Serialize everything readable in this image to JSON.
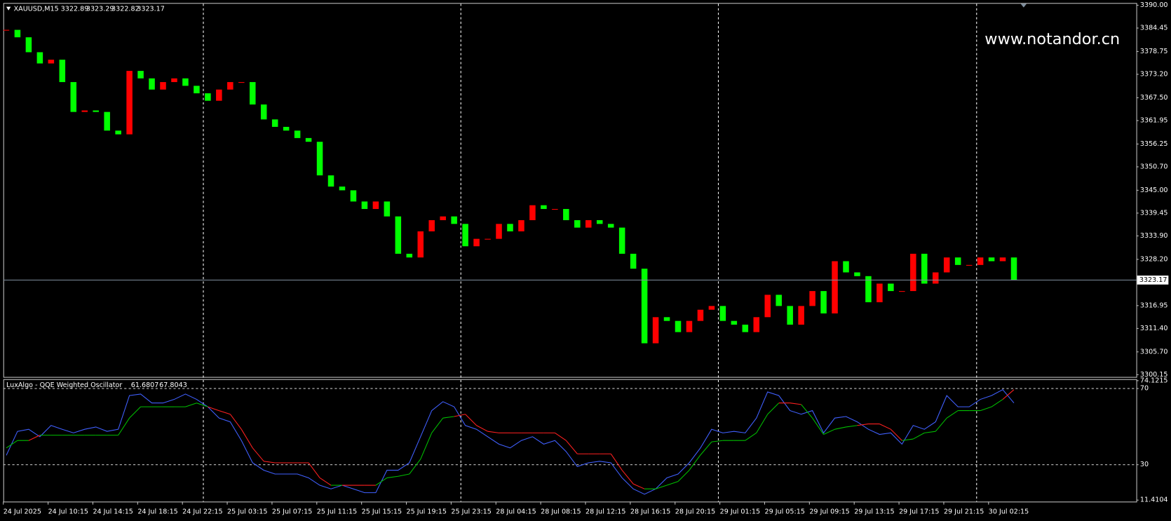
{
  "symbol": "XAUUSD,M15",
  "ohlc": [
    3322.89,
    3323.29,
    3322.82,
    3323.17
  ],
  "watermark": "www.notandor.cn",
  "chart_data": [
    {
      "type": "candlestick",
      "up_color": "#ff0000",
      "down_color": "#00ff00",
      "categories": [
        "24 Jul 2025",
        null,
        null,
        null,
        "24 Jul 10:15",
        null,
        null,
        null,
        "24 Jul 14:15",
        null,
        null,
        null,
        "24 Jul 18:15",
        null,
        null,
        null,
        "24 Jul 22:15",
        null,
        null,
        null,
        "25 Jul 03:15",
        null,
        null,
        null,
        "25 Jul 07:15",
        null,
        null,
        null,
        "25 Jul 11:15",
        null,
        null,
        null,
        "25 Jul 15:15",
        null,
        null,
        null,
        "25 Jul 19:15",
        null,
        null,
        null,
        "25 Jul 23:15",
        null,
        null,
        null,
        "28 Jul 04:15",
        null,
        null,
        null,
        "28 Jul 08:15",
        null,
        null,
        null,
        "28 Jul 12:15",
        null,
        null,
        null,
        "28 Jul 16:15",
        null,
        null,
        null,
        "28 Jul 20:15",
        null,
        null,
        null,
        "29 Jul 01:15",
        null,
        null,
        null,
        "29 Jul 05:15",
        null,
        null,
        null,
        "29 Jul 09:15",
        null,
        null,
        null,
        "29 Jul 13:15",
        null,
        null,
        null,
        "29 Jul 17:15",
        null,
        null,
        null,
        "29 Jul 21:15",
        null,
        null,
        null,
        "30 Jul 02:15",
        null,
        null
      ],
      "values": [
        3384.01,
        3382.2,
        3378.57,
        3375.84,
        3376.75,
        3371.31,
        3364.05,
        3364.41,
        3364.05,
        3359.51,
        3358.6,
        3374.03,
        3372.21,
        3369.49,
        3371.31,
        3372.21,
        3370.4,
        3368.58,
        3366.77,
        3369.49,
        3371.31,
        3371.31,
        3365.86,
        3362.23,
        3360.42,
        3359.51,
        3357.7,
        3356.79,
        3348.62,
        3345.9,
        3344.99,
        3342.27,
        3340.45,
        3342.27,
        3338.64,
        3329.56,
        3328.66,
        3335.01,
        3337.73,
        3338.64,
        3336.82,
        3331.38,
        3333.19,
        3333.19,
        3336.82,
        3335.01,
        3337.73,
        3341.36,
        3340.45,
        3340.45,
        3337.73,
        3335.92,
        3337.73,
        3336.82,
        3335.92,
        3329.56,
        3325.93,
        3307.79,
        3314.14,
        3313.23,
        3310.51,
        3313.23,
        3315.95,
        3316.86,
        3313.23,
        3312.32,
        3310.51,
        3314.14,
        3319.58,
        3316.86,
        3312.32,
        3316.86,
        3320.49,
        3315.05,
        3327.75,
        3325.03,
        3324.12,
        3317.77,
        3322.3,
        3320.49,
        3320.49,
        3329.56,
        3322.3,
        3325.03,
        3328.66,
        3326.84,
        3326.84,
        3328.66,
        3327.75,
        3328.66,
        3323.17
      ],
      "current_price": 3323.17,
      "current_price_color": "#8090a0",
      "ylim": [
        3300.15,
        3390
      ],
      "yticks": [
        {
          "value": 3390,
          "label": "3390.00"
        },
        3384.45,
        3378.75,
        {
          "value": 3373.2,
          "label": "3373.20"
        },
        {
          "value": 3367.5,
          "label": "3367.50"
        },
        3361.95,
        3356.25,
        {
          "value": 3350.7,
          "label": "3350.70"
        },
        {
          "value": 3345,
          "label": "3345.00"
        },
        3339.45,
        {
          "value": 3333.9,
          "label": "3333.90"
        },
        {
          "value": 3328.2,
          "label": "3328.20"
        },
        3316.95,
        {
          "value": 3311.4,
          "label": "3311.40"
        },
        {
          "value": 3305.7,
          "label": "3305.70"
        },
        3300.15
      ]
    },
    {
      "type": "line",
      "title": "LuxAlgo - QQE Weighted Oscillator",
      "title_values": [
        61.6807,
        67.8043
      ],
      "series": [
        {
          "color": "#4060ff",
          "values": [
            34.9,
            47.5,
            48.6,
            44.7,
            50.6,
            48.6,
            46.7,
            48.6,
            49.8,
            47.5,
            48.6,
            66.3,
            67.1,
            62.4,
            62.4,
            64.3,
            67.1,
            64.3,
            60.4,
            54.5,
            52.5,
            42.7,
            31.0,
            27.1,
            25.1,
            25.1,
            25.1,
            23.1,
            19.2,
            17.3,
            19.2,
            17.3,
            15.3,
            15.3,
            27.1,
            27.1,
            31.0,
            44.7,
            58.4,
            63.1,
            60.4,
            50.6,
            48.6,
            44.7,
            40.8,
            38.8,
            42.7,
            44.7,
            40.8,
            42.7,
            36.9,
            29.0,
            31.0,
            31.8,
            31.0,
            23.1,
            17.3,
            14.5,
            17.3,
            23.1,
            25.1,
            31.0,
            38.8,
            48.6,
            46.7,
            47.5,
            46.7,
            54.5,
            68.2,
            66.3,
            58.4,
            56.5,
            58.4,
            46.7,
            54.5,
            55.3,
            52.5,
            48.6,
            45.9,
            46.7,
            40.8,
            50.6,
            48.6,
            52.5,
            66.3,
            60.4,
            60.4,
            64.3,
            66.3,
            69.4,
            62.4
          ]
        },
        {
          "color": "#00c000",
          "above_color": "#ff2020",
          "values": [
            38.8,
            42.7,
            42.7,
            45.5,
            45.5,
            45.5,
            45.5,
            45.5,
            45.5,
            45.5,
            45.5,
            54.5,
            60.4,
            60.4,
            60.4,
            60.4,
            60.4,
            62.4,
            60.4,
            58.4,
            56.5,
            48.6,
            38.8,
            31.8,
            31.0,
            31.0,
            31.0,
            31.0,
            23.1,
            19.2,
            19.2,
            19.2,
            19.2,
            19.2,
            23.1,
            23.9,
            25.1,
            32.9,
            46.7,
            54.5,
            55.3,
            56.5,
            50.6,
            47.5,
            46.7,
            46.7,
            46.7,
            46.7,
            46.7,
            46.7,
            42.7,
            35.7,
            35.7,
            35.7,
            35.7,
            27.1,
            19.9,
            17.3,
            17.3,
            19.2,
            21.2,
            27.1,
            35.1,
            42.0,
            42.7,
            42.7,
            42.7,
            46.7,
            56.5,
            62.4,
            62.4,
            61.6,
            54.5,
            45.9,
            48.6,
            49.8,
            50.6,
            51.4,
            51.4,
            48.6,
            42.7,
            43.5,
            46.7,
            47.5,
            54.5,
            58.4,
            58.4,
            58.4,
            60.4,
            64.3,
            69.4
          ]
        }
      ],
      "ylim": [
        11.4104,
        74.1215
      ],
      "yticks": [
        74.1215,
        70,
        30,
        11.4104
      ]
    }
  ]
}
